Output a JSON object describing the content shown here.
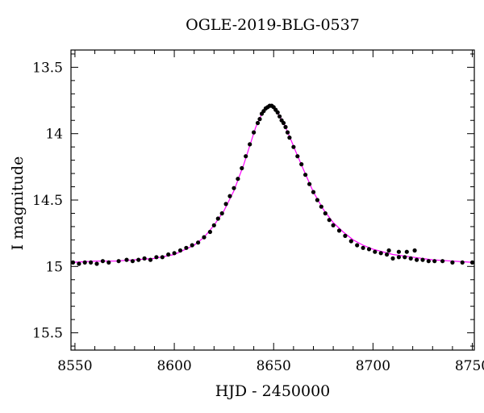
{
  "chart_data": {
    "type": "scatter",
    "title": "OGLE-2019-BLG-0537",
    "xlabel": "HJD - 2450000",
    "ylabel": "I magnitude",
    "xlim": [
      8548,
      8751
    ],
    "ylim": [
      15.63,
      13.37
    ],
    "y_inverted": true,
    "x_ticks": [
      8550,
      8600,
      8650,
      8700,
      8750
    ],
    "y_ticks": [
      13.5,
      14,
      14.5,
      15,
      15.5
    ],
    "x_tick_labels": [
      "8550",
      "8600",
      "8650",
      "8700",
      "8750"
    ],
    "y_tick_labels": [
      "13.5",
      "14",
      "14.5",
      "15",
      "15.5"
    ],
    "grid": false,
    "colors": {
      "points": "#000000",
      "model": "#ff00ff",
      "axes": "#000000"
    },
    "series": [
      {
        "kind": "points",
        "x": [
          8549,
          8552,
          8555,
          8558,
          8561,
          8564,
          8567,
          8572,
          8576,
          8579,
          8582,
          8585,
          8588,
          8591,
          8594,
          8597,
          8600,
          8603,
          8606,
          8609,
          8612,
          8615,
          8618,
          8620,
          8622,
          8624,
          8626,
          8628,
          8630,
          8632,
          8634,
          8636,
          8638,
          8640,
          8642,
          8643,
          8644,
          8645,
          8646,
          8647,
          8648,
          8649,
          8650,
          8651,
          8652,
          8653,
          8654,
          8655,
          8656,
          8657,
          8658,
          8660,
          8662,
          8664,
          8666,
          8668,
          8670,
          8672,
          8674,
          8676,
          8678,
          8680,
          8683,
          8686,
          8689,
          8692,
          8695,
          8698,
          8701,
          8704,
          8707,
          8710,
          8713,
          8716,
          8719,
          8722,
          8725,
          8728,
          8731,
          8735,
          8740,
          8745,
          8750
        ],
        "y": [
          14.97,
          14.98,
          14.97,
          14.97,
          14.98,
          14.96,
          14.97,
          14.96,
          14.95,
          14.96,
          14.95,
          14.94,
          14.95,
          14.93,
          14.93,
          14.91,
          14.9,
          14.88,
          14.86,
          14.84,
          14.82,
          14.78,
          14.74,
          14.69,
          14.64,
          14.6,
          14.53,
          14.47,
          14.41,
          14.34,
          14.26,
          14.17,
          14.08,
          13.99,
          13.92,
          13.89,
          13.85,
          13.83,
          13.81,
          13.8,
          13.79,
          13.79,
          13.8,
          13.82,
          13.84,
          13.87,
          13.9,
          13.92,
          13.95,
          13.99,
          14.03,
          14.1,
          14.17,
          14.23,
          14.31,
          14.38,
          14.44,
          14.5,
          14.55,
          14.6,
          14.65,
          14.69,
          14.73,
          14.77,
          14.81,
          14.84,
          14.86,
          14.87,
          14.89,
          14.9,
          14.91,
          14.94,
          14.93,
          14.93,
          14.94,
          14.95,
          14.95,
          14.96,
          14.96,
          14.96,
          14.97,
          14.97,
          14.97
        ]
      },
      {
        "kind": "points",
        "x": [
          8708,
          8713,
          8717,
          8721
        ],
        "y": [
          14.88,
          14.89,
          14.89,
          14.88
        ]
      },
      {
        "kind": "model",
        "x": [
          8548,
          8560,
          8570,
          8580,
          8590,
          8600,
          8610,
          8615,
          8620,
          8625,
          8630,
          8635,
          8638,
          8641,
          8644,
          8646,
          8648,
          8650,
          8652,
          8655,
          8658,
          8661,
          8665,
          8670,
          8675,
          8680,
          8685,
          8690,
          8695,
          8700,
          8710,
          8720,
          8730,
          8740,
          8751
        ],
        "y": [
          14.97,
          14.96,
          14.96,
          14.95,
          14.94,
          14.91,
          14.84,
          14.78,
          14.69,
          14.58,
          14.43,
          14.23,
          14.09,
          13.95,
          13.85,
          13.81,
          13.79,
          13.8,
          13.84,
          13.92,
          14.02,
          14.13,
          14.27,
          14.44,
          14.57,
          14.67,
          14.74,
          14.8,
          14.84,
          14.87,
          14.91,
          14.93,
          14.95,
          14.96,
          14.97
        ]
      }
    ]
  }
}
